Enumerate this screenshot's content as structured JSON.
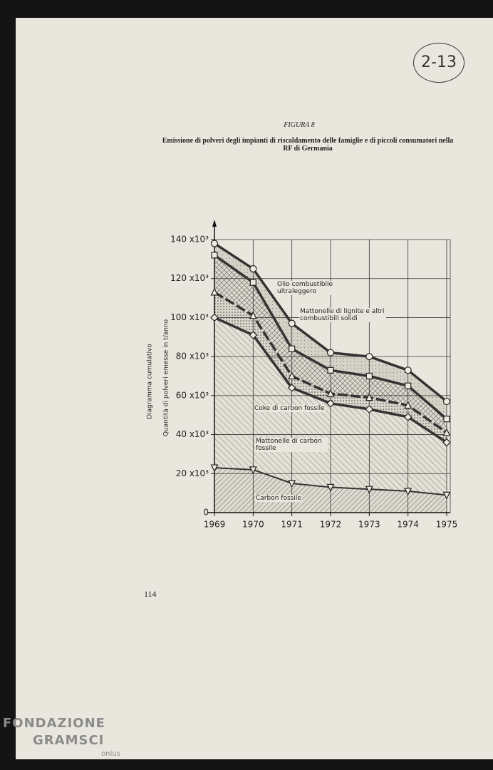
{
  "header": {
    "stamp": "2-13",
    "figure_label": "FIGURA 8"
  },
  "footer": {
    "page_number": "114",
    "watermark": "FONDAZIONE",
    "watermark_2": "GRAMSCI",
    "watermark_3": "onlus"
  },
  "chart_data": {
    "type": "stacked-area",
    "title": "Emissione di polveri degli impianti di riscaldamento delle famiglie e di piccoli consumatori nella RF di Germania",
    "y_label": "Diagramma cumulativo",
    "y_label_2": "Quantità di polveri emesse in t/anno",
    "categories": [
      "1969",
      "1970",
      "1971",
      "1972",
      "1973",
      "1974",
      "1975"
    ],
    "ylim": [
      0,
      140000
    ],
    "yticks": [
      0,
      {
        "value": 20000,
        "label": "20 x10³"
      },
      {
        "value": 40000,
        "label": "40 x10³"
      },
      {
        "value": 60000,
        "label": "60 x10³"
      },
      {
        "value": 80000,
        "label": "80 x10³"
      },
      {
        "value": 100000,
        "label": "100 x10³"
      },
      {
        "value": 120000,
        "label": "120 x10³"
      },
      {
        "value": 140000,
        "label": "140 x10³"
      }
    ],
    "grid": true,
    "series": [
      {
        "name": "Carbon fossile",
        "color": "#333333",
        "values": [
          23000,
          22000,
          15000,
          13000,
          12000,
          11000,
          9000
        ]
      },
      {
        "name": "Mattonelle di carbon fossile",
        "color": "#333333",
        "values": [
          77000,
          69000,
          49000,
          43000,
          41000,
          38000,
          27000
        ]
      },
      {
        "name": "Coke di carbon fossile",
        "color": "#333333",
        "values": [
          13000,
          10000,
          6000,
          5000,
          6000,
          6000,
          5000
        ]
      },
      {
        "name": "Mattonelle di lignite e altri combustibili solidi",
        "color": "#333333",
        "values": [
          19000,
          17000,
          14000,
          12000,
          11000,
          10000,
          7000
        ]
      },
      {
        "name": "Olio combustibile ultraleggero",
        "color": "#333333",
        "values": [
          6000,
          7000,
          13000,
          9000,
          10000,
          8000,
          9000
        ]
      }
    ]
  }
}
